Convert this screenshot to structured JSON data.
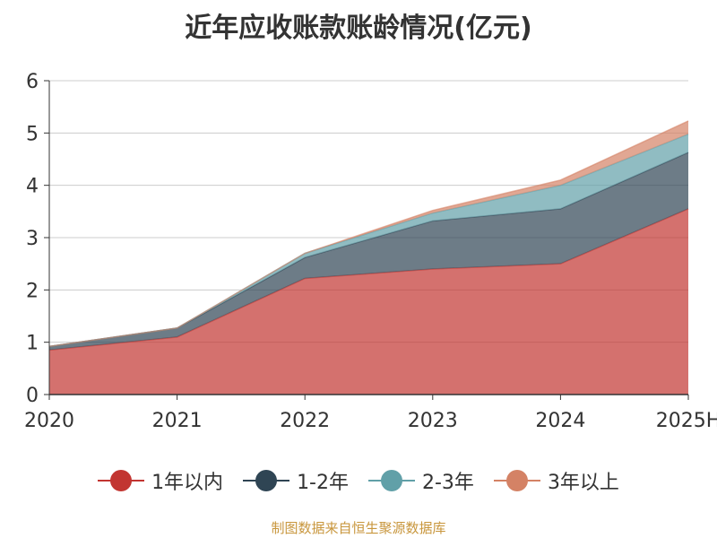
{
  "chart_data": {
    "type": "area",
    "title": "近年应收账款账龄情况(亿元)",
    "categories": [
      "2020",
      "2021",
      "2022",
      "2023",
      "2024",
      "2025H"
    ],
    "ylim": [
      0,
      6
    ],
    "yticks": [
      "0",
      "1",
      "2",
      "3",
      "4",
      "5",
      "6"
    ],
    "stacked": true,
    "grid": true,
    "legend_position": "bottom",
    "series": [
      {
        "name": "1年以内",
        "color": "#c23531",
        "values": [
          0.85,
          1.1,
          2.22,
          2.4,
          2.5,
          3.55
        ]
      },
      {
        "name": "1-2年",
        "color": "#2f4554",
        "values": [
          0.07,
          0.17,
          0.4,
          0.92,
          1.05,
          1.08
        ]
      },
      {
        "name": "2-3年",
        "color": "#61a0a8",
        "values": [
          0.0,
          0.0,
          0.08,
          0.15,
          0.45,
          0.35
        ]
      },
      {
        "name": "3年以上",
        "color": "#d48265",
        "values": [
          0.0,
          0.0,
          0.0,
          0.05,
          0.1,
          0.25
        ]
      }
    ]
  },
  "footer": {
    "source": "制图数据来自恒生聚源数据库"
  }
}
